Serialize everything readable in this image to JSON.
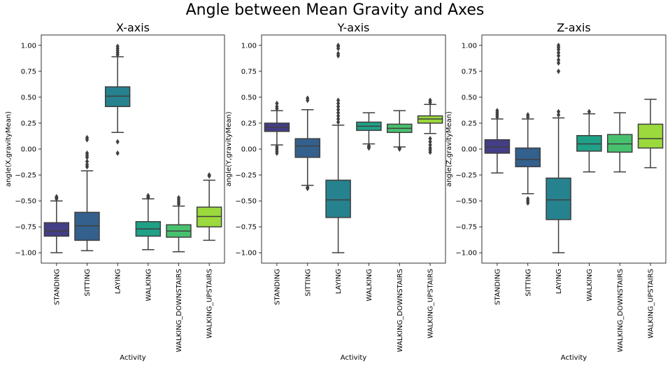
{
  "suptitle": "Angle between Mean Gravity and Axes",
  "palette": [
    "#433e85",
    "#33608d",
    "#26828e",
    "#1fa187",
    "#48c16e",
    "#9bd93c"
  ],
  "chart_data": [
    {
      "type": "box",
      "title": "X-axis",
      "xlabel": "Activity",
      "ylabel": "angle(X,gravityMean)",
      "ylim": [
        -1.1,
        1.1
      ],
      "yticks": [
        1.0,
        0.75,
        0.5,
        0.25,
        0.0,
        -0.25,
        -0.5,
        -0.75,
        -1.0
      ],
      "ytick_labels": [
        "1.00",
        "0.75",
        "0.50",
        "0.25",
        "0.00",
        "−0.25",
        "−0.50",
        "−0.75",
        "−1.00"
      ],
      "categories": [
        "STANDING",
        "SITTING",
        "LAYING",
        "WALKING",
        "WALKING_DOWNSTAIRS",
        "WALKING_UPSTAIRS"
      ],
      "boxes": [
        {
          "whislo": -1.0,
          "q1": -0.84,
          "med": -0.79,
          "q3": -0.71,
          "whishi": -0.5,
          "fliers": [
            -0.46,
            -0.47,
            -0.48
          ]
        },
        {
          "whislo": -0.98,
          "q1": -0.88,
          "med": -0.74,
          "q3": -0.61,
          "whishi": -0.21,
          "fliers": [
            -0.17,
            -0.15,
            -0.12,
            -0.08,
            -0.06,
            -0.04,
            0.09,
            0.11
          ]
        },
        {
          "whislo": 0.16,
          "q1": 0.41,
          "med": 0.51,
          "q3": 0.6,
          "whishi": 0.89,
          "fliers": [
            0.91,
            0.93,
            0.95,
            0.97,
            0.99,
            0.07,
            -0.04
          ]
        },
        {
          "whislo": -0.97,
          "q1": -0.84,
          "med": -0.77,
          "q3": -0.7,
          "whishi": -0.48,
          "fliers": [
            -0.45,
            -0.46,
            -0.47
          ]
        },
        {
          "whislo": -0.99,
          "q1": -0.85,
          "med": -0.79,
          "q3": -0.73,
          "whishi": -0.55,
          "fliers": [
            -0.47,
            -0.49,
            -0.51,
            -0.53
          ]
        },
        {
          "whislo": -0.88,
          "q1": -0.75,
          "med": -0.65,
          "q3": -0.56,
          "whishi": -0.3,
          "fliers": [
            -0.25,
            -0.26
          ]
        }
      ]
    },
    {
      "type": "box",
      "title": "Y-axis",
      "xlabel": "Activity",
      "ylabel": "angle(Y,gravityMean)",
      "ylim": [
        -1.1,
        1.1
      ],
      "yticks": [
        1.0,
        0.75,
        0.5,
        0.25,
        0.0,
        -0.25,
        -0.5,
        -0.75,
        -1.0
      ],
      "ytick_labels": [
        "1.00",
        "0.75",
        "0.50",
        "0.25",
        "0.00",
        "−0.25",
        "−0.50",
        "−0.75",
        "−1.00"
      ],
      "categories": [
        "STANDING",
        "SITTING",
        "LAYING",
        "WALKING",
        "WALKING_DOWNSTAIRS",
        "WALKING_UPSTAIRS"
      ],
      "boxes": [
        {
          "whislo": 0.04,
          "q1": 0.17,
          "med": 0.21,
          "q3": 0.25,
          "whishi": 0.37,
          "fliers": [
            0.39,
            0.41,
            0.44,
            0.02,
            0.0,
            -0.02,
            -0.04
          ]
        },
        {
          "whislo": -0.35,
          "q1": -0.08,
          "med": 0.03,
          "q3": 0.1,
          "whishi": 0.38,
          "fliers": [
            0.47,
            0.49,
            -0.37,
            -0.38
          ]
        },
        {
          "whislo": -1.0,
          "q1": -0.66,
          "med": -0.49,
          "q3": -0.3,
          "whishi": 0.23,
          "fliers": [
            0.26,
            0.29,
            0.32,
            0.35,
            0.38,
            0.41,
            0.44,
            0.47,
            0.9,
            0.92,
            0.97,
            0.99,
            1.0
          ]
        },
        {
          "whislo": 0.05,
          "q1": 0.18,
          "med": 0.22,
          "q3": 0.26,
          "whishi": 0.35,
          "fliers": [
            0.03,
            0.02,
            0.01
          ]
        },
        {
          "whislo": 0.02,
          "q1": 0.16,
          "med": 0.2,
          "q3": 0.24,
          "whishi": 0.37,
          "fliers": [
            0.01,
            0.0
          ]
        },
        {
          "whislo": 0.15,
          "q1": 0.25,
          "med": 0.29,
          "q3": 0.32,
          "whishi": 0.43,
          "fliers": [
            0.45,
            0.47,
            0.1,
            0.07,
            0.04,
            0.01,
            -0.01,
            -0.03
          ]
        }
      ]
    },
    {
      "type": "box",
      "title": "Z-axis",
      "xlabel": "Activity",
      "ylabel": "angle(Z,gravityMean)",
      "ylim": [
        -1.1,
        1.1
      ],
      "yticks": [
        1.0,
        0.75,
        0.5,
        0.25,
        0.0,
        -0.25,
        -0.5,
        -0.75,
        -1.0
      ],
      "ytick_labels": [
        "1.00",
        "0.75",
        "0.50",
        "0.25",
        "0.00",
        "−0.25",
        "−0.50",
        "−0.75",
        "−1.00"
      ],
      "categories": [
        "STANDING",
        "SITTING",
        "LAYING",
        "WALKING",
        "WALKING_DOWNSTAIRS",
        "WALKING_UPSTAIRS"
      ],
      "boxes": [
        {
          "whislo": -0.23,
          "q1": -0.04,
          "med": 0.02,
          "q3": 0.09,
          "whishi": 0.29,
          "fliers": [
            0.31,
            0.33,
            0.35,
            0.37
          ]
        },
        {
          "whislo": -0.43,
          "q1": -0.17,
          "med": -0.1,
          "q3": 0.01,
          "whishi": 0.29,
          "fliers": [
            0.31,
            0.33,
            -0.48,
            -0.5,
            -0.52
          ]
        },
        {
          "whislo": -1.0,
          "q1": -0.68,
          "med": -0.49,
          "q3": -0.28,
          "whishi": 0.3,
          "fliers": [
            0.33,
            0.36,
            0.75,
            0.83,
            0.86,
            0.9,
            0.93,
            0.96,
            0.98,
            1.0
          ]
        },
        {
          "whislo": -0.22,
          "q1": -0.02,
          "med": 0.05,
          "q3": 0.13,
          "whishi": 0.34,
          "fliers": [
            0.36
          ]
        },
        {
          "whislo": -0.22,
          "q1": -0.03,
          "med": 0.05,
          "q3": 0.14,
          "whishi": 0.35,
          "fliers": []
        },
        {
          "whislo": -0.18,
          "q1": 0.01,
          "med": 0.1,
          "q3": 0.24,
          "whishi": 0.48,
          "fliers": []
        }
      ]
    }
  ]
}
